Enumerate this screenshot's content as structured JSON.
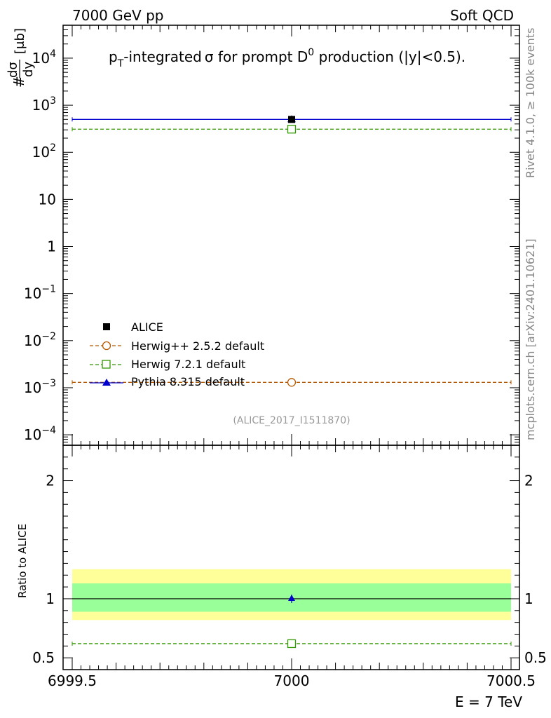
{
  "header": {
    "left_label": "7000 GeV pp",
    "right_label": "Soft QCD",
    "side_label_top": "Rivet 4.1.0, ≥ 100k events",
    "side_label_bottom": "mcplots.cern.ch [arXiv:2401.10621]"
  },
  "chart_data": {
    "type": "scatter",
    "title_parts": {
      "p": "p",
      "T": "T",
      "rest1": "-integrated",
      "sigma": "σ",
      "rest2": " for prompt D",
      "zero": "0",
      "rest3": " production (|y|<0.5)."
    },
    "ylabel_main": {
      "hash": "#",
      "num": "dσ",
      "den": "dy",
      "unit": "[μb]"
    },
    "analysis_tag": "(ALICE_2017_I1511870)",
    "xlabel": "E = 7 TeV",
    "xlim": [
      6999.5,
      7000.5
    ],
    "x_ticks": [
      "6999.5",
      "7000",
      "7000.5"
    ],
    "ylim_main": [
      6e-05,
      50000
    ],
    "y_ticks_main": [
      {
        "base": "10",
        "exp": "4"
      },
      {
        "base": "10",
        "exp": "3"
      },
      {
        "base": "10",
        "exp": "2"
      },
      {
        "base": "10",
        "exp": ""
      },
      {
        "base": "1",
        "exp": ""
      },
      {
        "base": "10",
        "exp": "−1"
      },
      {
        "base": "10",
        "exp": "−2"
      },
      {
        "base": "10",
        "exp": "−3"
      },
      {
        "base": "10",
        "exp": "−4"
      }
    ],
    "ratio_ylabel": "Ratio to ALICE",
    "ratio_ylim": [
      0.4,
      2.3
    ],
    "ratio_ticks": [
      "0.5",
      "1",
      "2"
    ],
    "ratio_bands": {
      "inner": [
        0.89,
        1.13
      ],
      "outer": [
        0.82,
        1.25
      ],
      "inner_color": "#99ff99",
      "outer_color": "#ffff99"
    },
    "data_point": {
      "name": "ALICE",
      "x": 7000,
      "y": 500,
      "color": "#000000"
    },
    "series": [
      {
        "name": "Herwig++ 2.5.2 default",
        "y": 0.0013,
        "ratio": null,
        "color": "#b35900",
        "marker": "circle-open",
        "dashed": true
      },
      {
        "name": "Herwig 7.2.1 default",
        "y": 310,
        "ratio": 0.62,
        "color": "#339900",
        "marker": "square-open",
        "dashed": true
      },
      {
        "name": "Pythia 8.315 default",
        "y": 500,
        "ratio": 1.0,
        "color": "#0000cc",
        "marker": "triangle",
        "dashed": false
      }
    ]
  }
}
